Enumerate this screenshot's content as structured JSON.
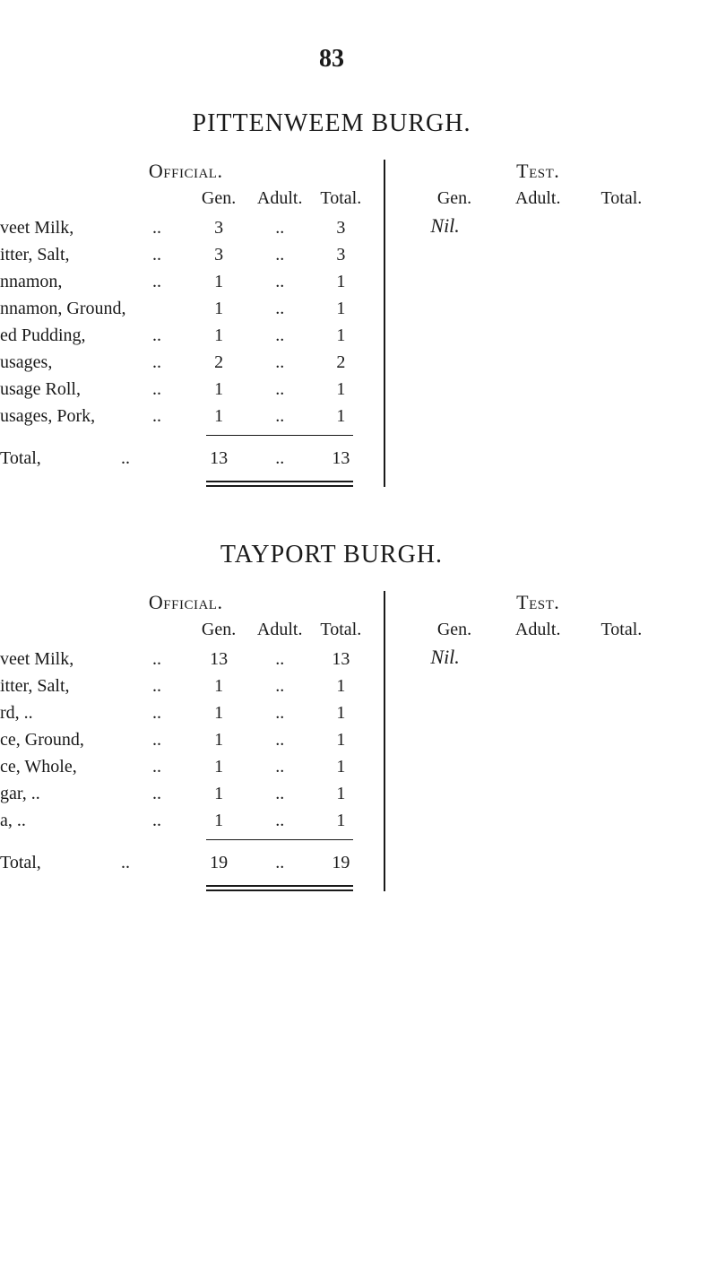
{
  "page_number": "83",
  "burgh1": {
    "title": "PITTENWEEM BURGH.",
    "official_label": "Official.",
    "test_label": "Test.",
    "headers": {
      "gen": "Gen.",
      "adult": "Adult.",
      "total": "Total."
    },
    "test_headers": {
      "gen": "Gen.",
      "adult": "Adult.",
      "total": "Total."
    },
    "nil_label": "Nil.",
    "rows": [
      {
        "label": "veet Milk,",
        "dots": "..",
        "gen": "3",
        "adult": "..",
        "total": "3"
      },
      {
        "label": "itter, Salt,",
        "dots": "..",
        "gen": "3",
        "adult": "..",
        "total": "3"
      },
      {
        "label": "nnamon,",
        "dots": "..",
        "gen": "1",
        "adult": "..",
        "total": "1"
      },
      {
        "label": "nnamon, Ground,",
        "dots": "",
        "gen": "1",
        "adult": "..",
        "total": "1"
      },
      {
        "label": "ed Pudding,",
        "dots": "..",
        "gen": "1",
        "adult": "..",
        "total": "1"
      },
      {
        "label": "usages,",
        "dots": "..",
        "gen": "2",
        "adult": "..",
        "total": "2"
      },
      {
        "label": "usage Roll,",
        "dots": "..",
        "gen": "1",
        "adult": "..",
        "total": "1"
      },
      {
        "label": "usages, Pork,",
        "dots": "..",
        "gen": "1",
        "adult": "..",
        "total": "1"
      }
    ],
    "total_row": {
      "label": "Total,",
      "dots": "..",
      "gen": "13",
      "adult": "..",
      "total": "13"
    }
  },
  "burgh2": {
    "title": "TAYPORT BURGH.",
    "official_label": "Official.",
    "test_label": "Test.",
    "headers": {
      "gen": "Gen.",
      "adult": "Adult.",
      "total": "Total."
    },
    "test_headers": {
      "gen": "Gen.",
      "adult": "Adult.",
      "total": "Total."
    },
    "nil_label": "Nil.",
    "rows": [
      {
        "label": "veet Milk,",
        "dots": "..",
        "gen": "13",
        "adult": "..",
        "total": "13"
      },
      {
        "label": "itter, Salt,",
        "dots": "..",
        "gen": "1",
        "adult": "..",
        "total": "1"
      },
      {
        "label": "rd, ..",
        "dots": "..",
        "gen": "1",
        "adult": "..",
        "total": "1"
      },
      {
        "label": "ce, Ground,",
        "dots": "..",
        "gen": "1",
        "adult": "..",
        "total": "1"
      },
      {
        "label": "ce, Whole,",
        "dots": "..",
        "gen": "1",
        "adult": "..",
        "total": "1"
      },
      {
        "label": "gar, ..",
        "dots": "..",
        "gen": "1",
        "adult": "..",
        "total": "1"
      },
      {
        "label": "a,   ..",
        "dots": "..",
        "gen": "1",
        "adult": "..",
        "total": "1"
      }
    ],
    "total_row": {
      "label": "Total,",
      "dots": "..",
      "gen": "19",
      "adult": "..",
      "total": "19"
    }
  }
}
